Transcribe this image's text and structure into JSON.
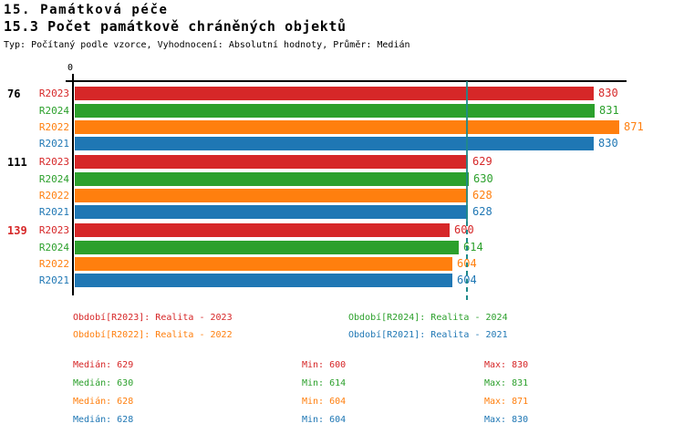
{
  "page": {
    "title_line1": "15. Památková péče",
    "title_line2": "15.3 Počet památkově chráněných objektů",
    "meta_line": "Typ: Počítaný podle vzorce, Vyhodnocení: Absolutní hodnoty, Průměr: Medián"
  },
  "axis": {
    "zero_label": "0"
  },
  "palette": {
    "R2023": "#d62728",
    "R2024": "#2ca02c",
    "R2022": "#ff7f0e",
    "R2021": "#1f77b4",
    "median_line": "#1f8a8a",
    "axis_color": "#000000",
    "group_id_normal": "#000000",
    "group_id_alert": "#d62728"
  },
  "chart_data": {
    "type": "bar",
    "orientation": "horizontal",
    "title": "15.3 Počet památkově chráněných objektů",
    "x_axis": {
      "ticks": [
        0
      ],
      "range": [
        0,
        890
      ],
      "grid": false
    },
    "series_order": [
      "R2023",
      "R2024",
      "R2022",
      "R2021"
    ],
    "groups": [
      {
        "id": "76",
        "id_color": "#000000",
        "values": {
          "R2023": 830,
          "R2024": 831,
          "R2022": 871,
          "R2021": 830
        }
      },
      {
        "id": "111",
        "id_color": "#000000",
        "values": {
          "R2023": 629,
          "R2024": 630,
          "R2022": 628,
          "R2021": 628
        }
      },
      {
        "id": "139",
        "id_color": "#d62728",
        "values": {
          "R2023": 600,
          "R2024": 614,
          "R2022": 604,
          "R2021": 604
        }
      }
    ],
    "median_line_value": 629,
    "stats": [
      {
        "series": "R2023",
        "median": 629,
        "min": 600,
        "max": 830
      },
      {
        "series": "R2024",
        "median": 630,
        "min": 614,
        "max": 831
      },
      {
        "series": "R2022",
        "median": 628,
        "min": 604,
        "max": 871
      },
      {
        "series": "R2021",
        "median": 628,
        "min": 604,
        "max": 830
      }
    ]
  },
  "legend": {
    "items": [
      {
        "series": "R2023",
        "text": "Období[R2023]: Realita - 2023"
      },
      {
        "series": "R2024",
        "text": "Období[R2024]: Realita - 2024"
      },
      {
        "series": "R2022",
        "text": "Období[R2022]: Realita - 2022"
      },
      {
        "series": "R2021",
        "text": "Období[R2021]: Realita - 2021"
      }
    ]
  },
  "stat_labels": {
    "median": "Medián",
    "min": "Min",
    "max": "Max"
  }
}
